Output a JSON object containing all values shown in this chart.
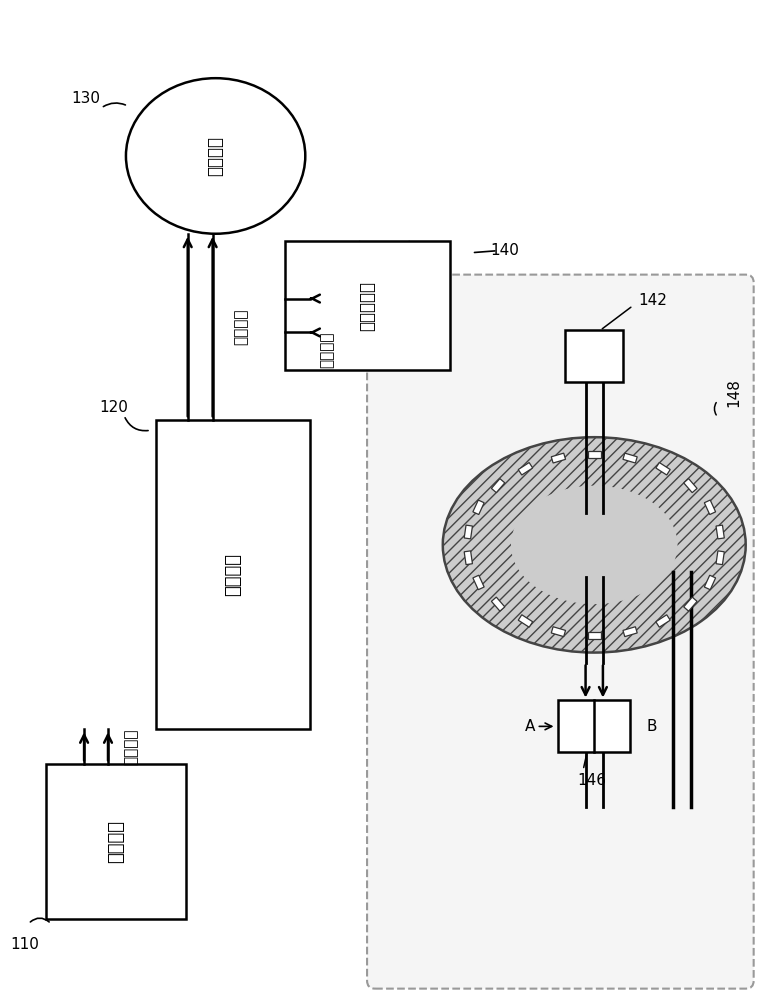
{
  "bg_color": "#ffffff",
  "box_color": "#ffffff",
  "box_edge_color": "#000000",
  "arrow_color": "#000000",
  "text_color": "#000000",
  "label_110": "指令装置",
  "label_120": "微控制器",
  "label_130": "伺服马达",
  "label_140": "光电编码器",
  "label_command_pulse": "指令脉冲",
  "label_drive_pulse": "驱动脉冲",
  "label_feedback_pulse": "反馈脉冲",
  "label_num_110": "110",
  "label_num_120": "120",
  "label_num_130": "130",
  "label_num_140": "140",
  "label_num_142": "142",
  "label_num_146": "146",
  "label_num_148": "148",
  "label_A": "A",
  "label_B": "B"
}
